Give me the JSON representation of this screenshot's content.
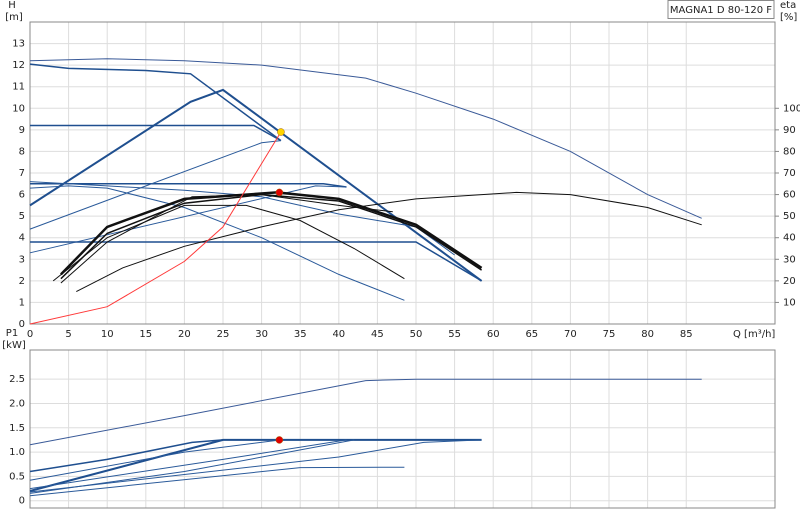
{
  "chart_data": [
    {
      "type": "line",
      "title": "MAGNA1 D 80-120 F",
      "xlabel": "Q [m³/h]",
      "ylabel": "H",
      "yunit": "[m]",
      "y2label": "eta",
      "y2unit": "[%]",
      "xlim": [
        0,
        96.5
      ],
      "xticks": [
        0,
        5,
        10,
        15,
        20,
        25,
        30,
        35,
        40,
        45,
        50,
        55,
        60,
        65,
        70,
        75,
        80,
        85
      ],
      "ylim": [
        0,
        14
      ],
      "yticks": [
        0,
        1,
        2,
        3,
        4,
        5,
        6,
        7,
        8,
        9,
        10,
        11,
        12,
        13
      ],
      "y2lim": [
        0,
        140
      ],
      "y2ticks": [
        10,
        20,
        30,
        40,
        50,
        60,
        70,
        80,
        90,
        100
      ],
      "grid": true,
      "series": [
        {
          "color": "#3a5a98",
          "width": 1,
          "x": [
            0,
            10,
            20,
            30,
            43.5,
            50,
            60,
            70,
            80,
            87
          ],
          "values": [
            12.2,
            12.3,
            12.2,
            12.0,
            11.4,
            10.7,
            9.5,
            8.0,
            6.0,
            4.9
          ]
        },
        {
          "color": "#1f4f8f",
          "width": 1.5,
          "x": [
            0,
            5,
            15,
            20.8,
            32.5
          ],
          "values": [
            12.05,
            11.85,
            11.75,
            11.6,
            8.5
          ]
        },
        {
          "color": "#1f4f8f",
          "width": 2,
          "x": [
            0,
            20.8,
            25,
            58.5
          ],
          "values": [
            5.5,
            10.3,
            10.85,
            2.0
          ]
        },
        {
          "color": "#1f4f8f",
          "width": 1.5,
          "x": [
            0,
            29,
            32.5
          ],
          "values": [
            9.2,
            9.2,
            8.5
          ]
        },
        {
          "color": "#1f4f8f",
          "width": 1.5,
          "x": [
            0,
            38,
            41
          ],
          "values": [
            6.5,
            6.5,
            6.35
          ]
        },
        {
          "color": "#1f4f8f",
          "width": 1.5,
          "x": [
            0,
            50,
            58.5
          ],
          "values": [
            3.8,
            3.8,
            2.0
          ]
        },
        {
          "color": "#2a5a9a",
          "width": 1,
          "x": [
            0,
            30,
            32.5
          ],
          "values": [
            4.4,
            8.4,
            8.5
          ]
        },
        {
          "color": "#2a5a9a",
          "width": 1,
          "x": [
            0,
            37,
            41
          ],
          "values": [
            3.3,
            6.4,
            6.35
          ]
        },
        {
          "color": "#2a5a9a",
          "width": 1,
          "x": [
            0,
            5,
            10,
            20,
            30,
            40,
            48.5
          ],
          "values": [
            6.3,
            6.4,
            6.3,
            5.4,
            4.0,
            2.3,
            1.1
          ]
        },
        {
          "color": "#2a5a9a",
          "width": 1,
          "x": [
            0,
            10,
            20,
            30,
            40,
            50,
            55
          ],
          "values": [
            6.6,
            6.4,
            6.2,
            5.9,
            5.1,
            4.5,
            3.2
          ]
        },
        {
          "color": "#111",
          "width": 2.5,
          "x": [
            4,
            10,
            20,
            32,
            40,
            50,
            58.5
          ],
          "values": [
            2.3,
            4.5,
            5.8,
            6.1,
            5.8,
            4.6,
            2.6
          ]
        },
        {
          "color": "#111",
          "width": 1.5,
          "x": [
            4,
            10,
            20,
            30,
            40,
            50,
            58.5
          ],
          "values": [
            2.1,
            4.2,
            5.6,
            6.0,
            5.7,
            4.5,
            2.5
          ]
        },
        {
          "color": "#111",
          "width": 1,
          "x": [
            3,
            10,
            20,
            28,
            35,
            42,
            48.5
          ],
          "values": [
            2.0,
            4.0,
            5.5,
            5.5,
            4.8,
            3.5,
            2.1
          ]
        },
        {
          "color": "#111",
          "width": 1,
          "x": [
            4,
            10,
            21,
            30,
            40,
            47
          ],
          "values": [
            1.9,
            3.8,
            5.9,
            6.0,
            5.5,
            5.2
          ]
        },
        {
          "color": "#111",
          "width": 1,
          "axis": "y2",
          "x": [
            6,
            12,
            20,
            30,
            40,
            50,
            63,
            70,
            80,
            87
          ],
          "values": [
            15,
            26,
            36,
            45,
            53,
            58,
            61,
            60,
            54,
            46
          ]
        },
        {
          "color": "#ff3a3a",
          "width": 1,
          "x": [
            0,
            10,
            20,
            25,
            32.5
          ],
          "values": [
            0,
            0.8,
            2.9,
            4.5,
            8.9
          ]
        }
      ],
      "points": [
        {
          "x": 32.5,
          "y": 8.9,
          "color": "#ffd400"
        },
        {
          "x": 32.3,
          "y": 6.1,
          "color": "#e00000"
        }
      ]
    },
    {
      "type": "line",
      "ylabel": "P1",
      "yunit": "[kW]",
      "xlim": [
        0,
        96.5
      ],
      "xticks": [
        0,
        5,
        10,
        15,
        20,
        25,
        30,
        35,
        40,
        45,
        50,
        55,
        60,
        65,
        70,
        75,
        80,
        85
      ],
      "ylim": [
        -0.15,
        3.1
      ],
      "yticks": [
        0,
        0.5,
        {
          "value": 1,
          "label": "1.0"
        },
        1.5,
        {
          "value": 2,
          "label": "2.0"
        },
        2.5
      ],
      "grid": true,
      "series": [
        {
          "color": "#3a5a98",
          "width": 1,
          "x": [
            0,
            20,
            43.5,
            50,
            87
          ],
          "values": [
            1.15,
            1.75,
            2.47,
            2.5,
            2.5
          ]
        },
        {
          "color": "#1f4f8f",
          "width": 2,
          "x": [
            0,
            25,
            58.5
          ],
          "values": [
            0.2,
            1.25,
            1.25
          ]
        },
        {
          "color": "#1f4f8f",
          "width": 1.5,
          "x": [
            0,
            10,
            21,
            25
          ],
          "values": [
            0.6,
            0.85,
            1.2,
            1.25
          ]
        },
        {
          "color": "#2a5a9a",
          "width": 1,
          "x": [
            0,
            20,
            32.5
          ],
          "values": [
            0.42,
            1.0,
            1.25
          ]
        },
        {
          "color": "#2a5a9a",
          "width": 1,
          "x": [
            0,
            20,
            42
          ],
          "values": [
            0.15,
            0.6,
            1.25
          ]
        },
        {
          "color": "#2a5a9a",
          "width": 1,
          "x": [
            0,
            25,
            41
          ],
          "values": [
            0.25,
            0.85,
            1.25
          ]
        },
        {
          "color": "#2a5a9a",
          "width": 1,
          "x": [
            0,
            40,
            51,
            58.5
          ],
          "values": [
            0.18,
            0.9,
            1.2,
            1.25
          ]
        },
        {
          "color": "#2a5a9a",
          "width": 1,
          "x": [
            0,
            35,
            48.5
          ],
          "values": [
            0.1,
            0.68,
            0.69
          ]
        }
      ],
      "points": [
        {
          "x": 32.3,
          "y": 1.25,
          "color": "#e00000"
        }
      ]
    }
  ]
}
